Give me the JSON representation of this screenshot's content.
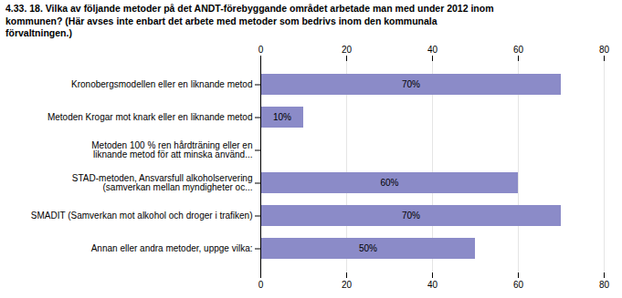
{
  "chart_data": {
    "type": "bar",
    "orientation": "horizontal",
    "title": "4.33. 18. Vilka av följande metoder på det ANDT-förebyggande området arbetade man med under 2012 inom\nkommunen? (Här avses inte enbart det arbete med metoder som bedrivs inom den kommunala\nförvaltningen.)",
    "categories": [
      "Kronobergsmodellen eller en liknande metod",
      "Metoden Krogar mot knark eller en liknande metod",
      "Metoden 100 % ren hårdträning eller en\nliknande metod för att minska använd...",
      "STAD-metoden, Ansvarsfull alkoholservering\n(samverkan mellan myndigheter oc...",
      "SMADIT (Samverkan mot alkohol och droger i trafiken)",
      "Annan eller andra metoder, uppge vilka:"
    ],
    "values": [
      70,
      10,
      0,
      60,
      70,
      50
    ],
    "value_labels": [
      "70%",
      "10%",
      null,
      "60%",
      "70%",
      "50%"
    ],
    "data_labels": true,
    "color": "#8b8bc8",
    "xlim": [
      0,
      80
    ],
    "xticks": [
      0,
      20,
      40,
      60,
      80
    ],
    "grid": true
  }
}
